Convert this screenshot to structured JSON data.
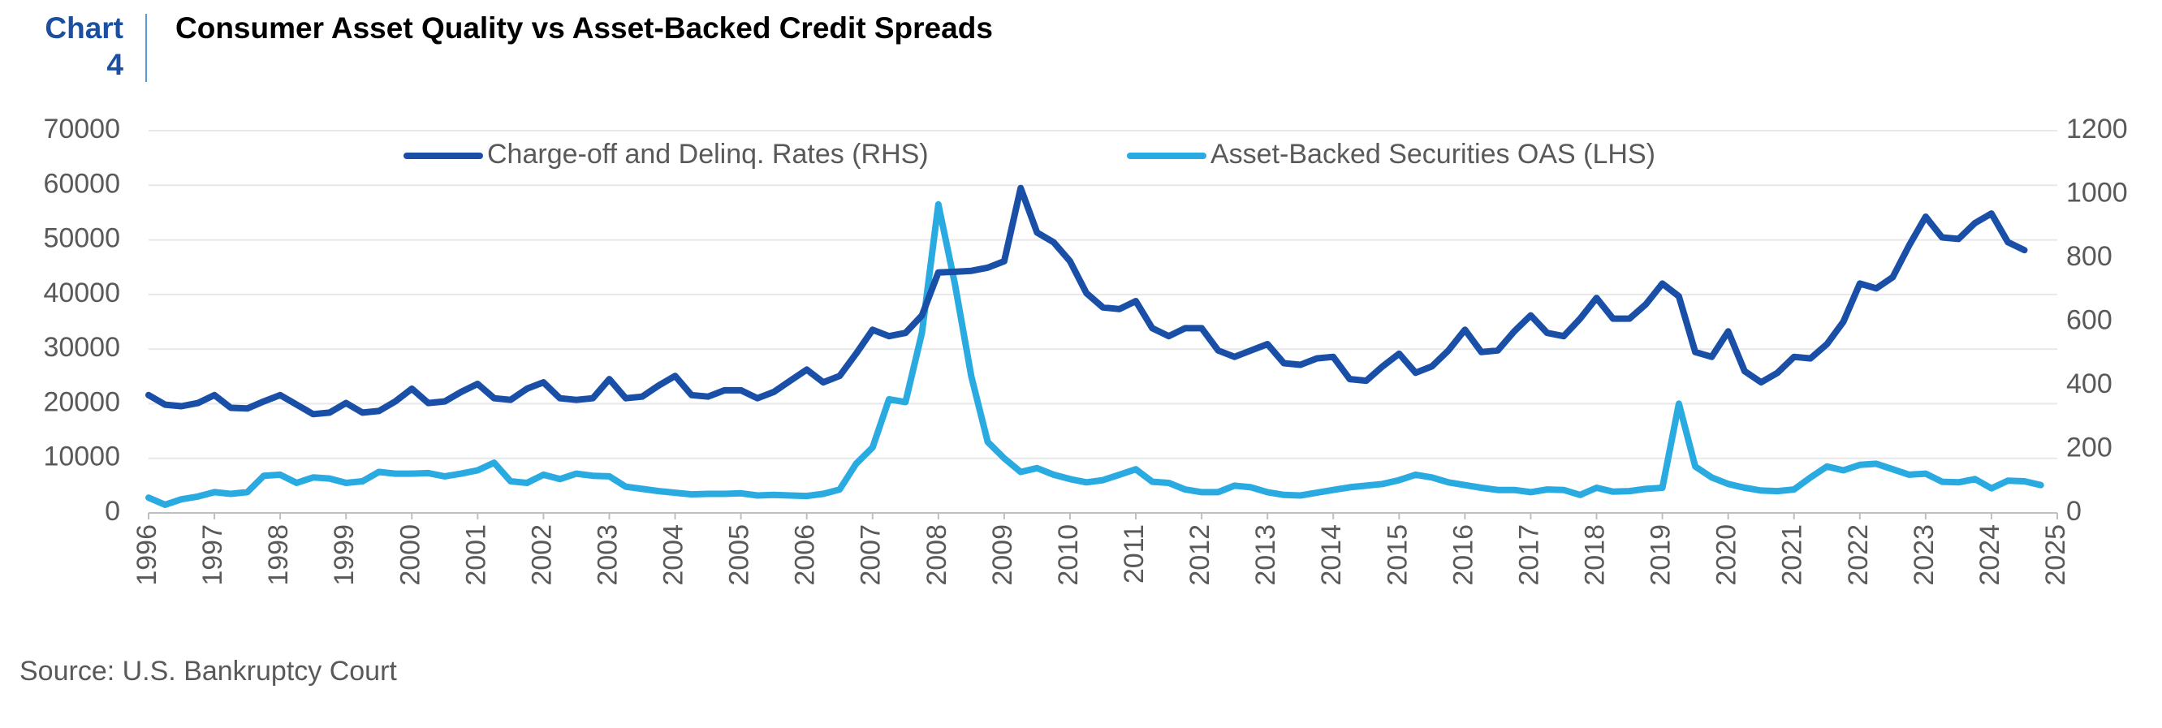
{
  "header": {
    "chart_label": "Chart 4",
    "source": "Source: U.S. Bankruptcy Court"
  },
  "chart_data": {
    "type": "line",
    "title": "Consumer Asset Quality vs Asset-Backed Credit Spreads",
    "legend": "top",
    "grid": true,
    "xlim": [
      1996,
      2025
    ],
    "xticks": [
      1996,
      1997,
      1998,
      1999,
      2000,
      2001,
      2002,
      2003,
      2004,
      2005,
      2006,
      2007,
      2008,
      2009,
      2010,
      2011,
      2012,
      2013,
      2014,
      2015,
      2016,
      2017,
      2018,
      2019,
      2020,
      2021,
      2022,
      2023,
      2024,
      2025
    ],
    "ylim": [
      0,
      70000
    ],
    "yticks": [
      0,
      10000,
      20000,
      30000,
      40000,
      50000,
      60000,
      70000
    ],
    "y2lim": [
      0,
      1200
    ],
    "y2ticks": [
      0,
      200,
      400,
      600,
      800,
      1000,
      1200
    ],
    "x": [
      1996,
      1996.25,
      1996.5,
      1996.75,
      1997,
      1997.25,
      1997.5,
      1997.75,
      1998,
      1998.25,
      1998.5,
      1998.75,
      1999,
      1999.25,
      1999.5,
      1999.75,
      2000,
      2000.25,
      2000.5,
      2000.75,
      2001,
      2001.25,
      2001.5,
      2001.75,
      2002,
      2002.25,
      2002.5,
      2002.75,
      2003,
      2003.25,
      2003.5,
      2003.75,
      2004,
      2004.25,
      2004.5,
      2004.75,
      2005,
      2005.25,
      2005.5,
      2005.75,
      2006,
      2006.25,
      2006.5,
      2006.75,
      2007,
      2007.25,
      2007.5,
      2007.75,
      2008,
      2008.25,
      2008.5,
      2008.75,
      2009,
      2009.25,
      2009.5,
      2009.75,
      2010,
      2010.25,
      2010.5,
      2010.75,
      2011,
      2011.25,
      2011.5,
      2011.75,
      2012,
      2012.25,
      2012.5,
      2012.75,
      2013,
      2013.25,
      2013.5,
      2013.75,
      2014,
      2014.25,
      2014.5,
      2014.75,
      2015,
      2015.25,
      2015.5,
      2015.75,
      2016,
      2016.25,
      2016.5,
      2016.75,
      2017,
      2017.25,
      2017.5,
      2017.75,
      2018,
      2018.25,
      2018.5,
      2018.75,
      2019,
      2019.25,
      2019.5,
      2019.75,
      2020,
      2020.25,
      2020.5,
      2020.75,
      2021,
      2021.25,
      2021.5,
      2021.75,
      2022,
      2022.25,
      2022.5,
      2022.75,
      2023,
      2023.25,
      2023.5,
      2023.75,
      2024,
      2024.25,
      2024.5,
      2024.75
    ],
    "series": [
      {
        "name": "Charge-off and Delinq. Rates (RHS)",
        "color": "#1a4fa8",
        "axis": "y2",
        "values": [
          370,
          340,
          335,
          345,
          370,
          330,
          328,
          350,
          370,
          340,
          310,
          315,
          345,
          315,
          320,
          350,
          390,
          345,
          350,
          380,
          405,
          360,
          355,
          390,
          410,
          360,
          355,
          360,
          420,
          360,
          365,
          400,
          430,
          370,
          365,
          385,
          385,
          360,
          380,
          415,
          450,
          410,
          430,
          500,
          575,
          555,
          565,
          620,
          755,
          757,
          760,
          770,
          790,
          1020,
          880,
          850,
          790,
          690,
          645,
          640,
          665,
          580,
          555,
          580,
          580,
          510,
          490,
          510,
          530,
          470,
          465,
          485,
          490,
          420,
          415,
          460,
          500,
          440,
          460,
          510,
          575,
          505,
          510,
          570,
          620,
          565,
          555,
          610,
          675,
          610,
          610,
          655,
          720,
          680,
          505,
          490,
          570,
          445,
          410,
          440,
          490,
          485,
          530,
          600,
          720,
          705,
          740,
          840,
          930,
          865,
          860,
          910,
          940,
          850,
          825,
          null
        ]
      },
      {
        "name": "Asset-Backed Securities OAS (LHS)",
        "color": "#29abe2",
        "values": [
          2800,
          1500,
          2500,
          3000,
          3800,
          3500,
          3800,
          6800,
          7000,
          5500,
          6500,
          6300,
          5500,
          5800,
          7500,
          7200,
          7200,
          7300,
          6700,
          7200,
          7800,
          9200,
          5800,
          5500,
          7000,
          6200,
          7200,
          6800,
          6700,
          4800,
          4400,
          4000,
          3700,
          3400,
          3500,
          3500,
          3600,
          3200,
          3300,
          3200,
          3100,
          3500,
          4300,
          9000,
          12000,
          20800,
          20300,
          33000,
          56500,
          42000,
          25000,
          13000,
          10000,
          7500,
          8200,
          7000,
          6200,
          5600,
          6000,
          7000,
          8000,
          5700,
          5500,
          4300,
          3800,
          3800,
          5000,
          4700,
          3800,
          3300,
          3200,
          3700,
          4200,
          4700,
          5000,
          5300,
          6000,
          7000,
          6500,
          5600,
          5100,
          4600,
          4200,
          4200,
          3800,
          4300,
          4200,
          3300,
          4600,
          3900,
          4000,
          4400,
          4600,
          20000,
          8500,
          6500,
          5300,
          4600,
          4100,
          4000,
          4300,
          6500,
          8500,
          7800,
          8800,
          9000,
          8000,
          7000,
          7200,
          5700,
          5600,
          6200,
          4500,
          5900,
          5800,
          5100
        ]
      }
    ]
  }
}
